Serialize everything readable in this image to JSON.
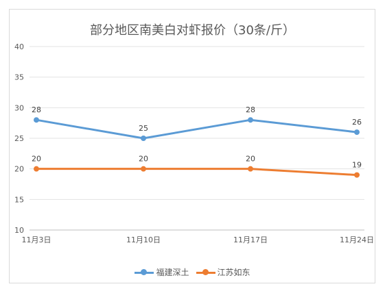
{
  "chart_data": {
    "type": "line",
    "title": "部分地区南美白对虾报价（30条/斤）",
    "categories": [
      "11月3日",
      "11月10日",
      "11月17日",
      "11月24日"
    ],
    "ylim": [
      10,
      40
    ],
    "yticks": [
      10,
      15,
      20,
      25,
      30,
      35,
      40
    ],
    "grid": true,
    "legend_position": "bottom",
    "series": [
      {
        "name": "福建深土",
        "values": [
          28,
          25,
          28,
          26
        ],
        "color": "#5b9bd5"
      },
      {
        "name": "江苏如东",
        "values": [
          20,
          20,
          20,
          19
        ],
        "color": "#ed7d31"
      }
    ]
  }
}
